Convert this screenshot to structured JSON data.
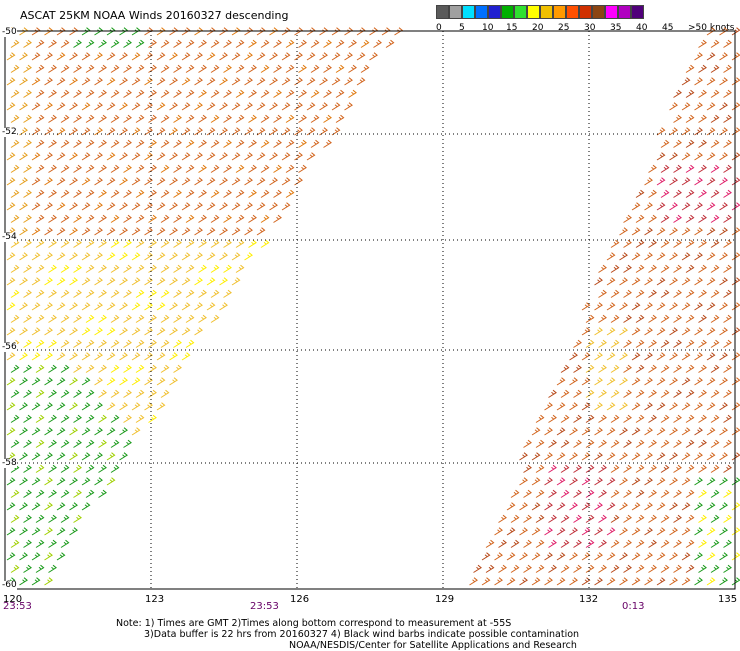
{
  "title": "ASCAT 25KM NOAA Winds 20160327 descending",
  "scale": {
    "colors": [
      "#5a5a5a",
      "#a0a0a0",
      "#00e0ff",
      "#0070ff",
      "#2020d0",
      "#00b000",
      "#30e030",
      "#ffff00",
      "#f0c000",
      "#ff9a00",
      "#ff5000",
      "#d03000",
      "#8b4513",
      "#ff00ff",
      "#b000c0",
      "#50007a"
    ],
    "labels": [
      "0",
      "5",
      "10",
      "15",
      "20",
      "25",
      "30",
      "35",
      "40",
      "45",
      ">50 knots"
    ]
  },
  "axes": {
    "lat_labels": [
      "-50",
      "-52",
      "-54",
      "-56",
      "-58",
      "-60"
    ],
    "lon_labels": [
      "120",
      "123",
      "126",
      "129",
      "132",
      "135"
    ],
    "times": [
      "23:53",
      "23:53",
      "0:13"
    ]
  },
  "notes": [
    "Note: 1) Times are GMT 2)Times along bottom correspond to measurement at -55S",
    "3)Data buffer is 22 hrs from 20160327 4) Black wind barbs indicate possible contamination",
    "NOAA/NESDIS/Center for Satellite Applications and Research"
  ]
}
